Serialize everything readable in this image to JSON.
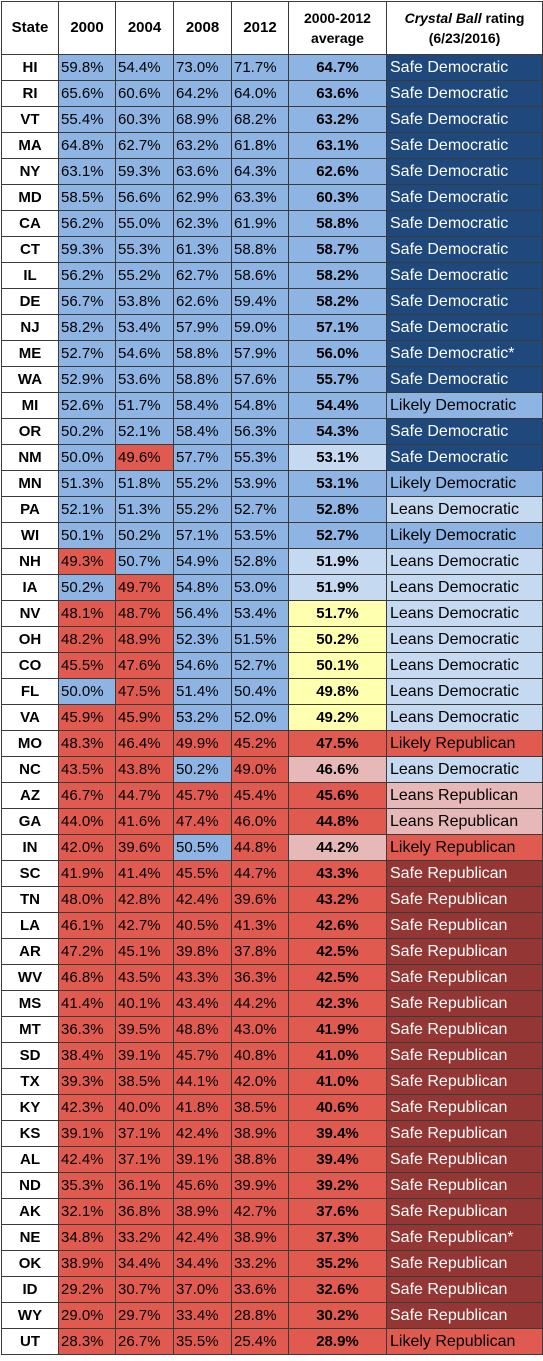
{
  "header": {
    "state": "State",
    "years": [
      "2000",
      "2004",
      "2008",
      "2012"
    ],
    "average_line1": "2000-2012",
    "average_line2": "average",
    "rating_italic": "Crystal Ball",
    "rating_rest": " rating",
    "rating_date": "(6/23/2016)"
  },
  "colors": {
    "blue": "#8eb4e3",
    "red": "#e05a50",
    "light_blue": "#c5d9f1",
    "yellow": "#ffffb0",
    "pink": "#e6b9b8",
    "safe_dem": "#1f497d",
    "likely_dem": "#8eb4e3",
    "leans_dem": "#c5d9f1",
    "leans_rep": "#e6b9b8",
    "likely_rep": "#e05a50",
    "safe_rep": "#943634"
  },
  "rows": [
    {
      "state": "HI",
      "pct": [
        "59.8%",
        "54.4%",
        "73.0%",
        "71.7%"
      ],
      "avg": "64.7%",
      "rating": "Safe Democratic",
      "cc": [
        "b",
        "b",
        "b",
        "b"
      ],
      "ac": "b",
      "rc": "sd"
    },
    {
      "state": "RI",
      "pct": [
        "65.6%",
        "60.6%",
        "64.2%",
        "64.0%"
      ],
      "avg": "63.6%",
      "rating": "Safe Democratic",
      "cc": [
        "b",
        "b",
        "b",
        "b"
      ],
      "ac": "b",
      "rc": "sd"
    },
    {
      "state": "VT",
      "pct": [
        "55.4%",
        "60.3%",
        "68.9%",
        "68.2%"
      ],
      "avg": "63.2%",
      "rating": "Safe Democratic",
      "cc": [
        "b",
        "b",
        "b",
        "b"
      ],
      "ac": "b",
      "rc": "sd"
    },
    {
      "state": "MA",
      "pct": [
        "64.8%",
        "62.7%",
        "63.2%",
        "61.8%"
      ],
      "avg": "63.1%",
      "rating": "Safe Democratic",
      "cc": [
        "b",
        "b",
        "b",
        "b"
      ],
      "ac": "b",
      "rc": "sd"
    },
    {
      "state": "NY",
      "pct": [
        "63.1%",
        "59.3%",
        "63.6%",
        "64.3%"
      ],
      "avg": "62.6%",
      "rating": "Safe Democratic",
      "cc": [
        "b",
        "b",
        "b",
        "b"
      ],
      "ac": "b",
      "rc": "sd"
    },
    {
      "state": "MD",
      "pct": [
        "58.5%",
        "56.6%",
        "62.9%",
        "63.3%"
      ],
      "avg": "60.3%",
      "rating": "Safe Democratic",
      "cc": [
        "b",
        "b",
        "b",
        "b"
      ],
      "ac": "b",
      "rc": "sd"
    },
    {
      "state": "CA",
      "pct": [
        "56.2%",
        "55.0%",
        "62.3%",
        "61.9%"
      ],
      "avg": "58.8%",
      "rating": "Safe Democratic",
      "cc": [
        "b",
        "b",
        "b",
        "b"
      ],
      "ac": "b",
      "rc": "sd"
    },
    {
      "state": "CT",
      "pct": [
        "59.3%",
        "55.3%",
        "61.3%",
        "58.8%"
      ],
      "avg": "58.7%",
      "rating": "Safe Democratic",
      "cc": [
        "b",
        "b",
        "b",
        "b"
      ],
      "ac": "b",
      "rc": "sd"
    },
    {
      "state": "IL",
      "pct": [
        "56.2%",
        "55.2%",
        "62.7%",
        "58.6%"
      ],
      "avg": "58.2%",
      "rating": "Safe Democratic",
      "cc": [
        "b",
        "b",
        "b",
        "b"
      ],
      "ac": "b",
      "rc": "sd"
    },
    {
      "state": "DE",
      "pct": [
        "56.7%",
        "53.8%",
        "62.6%",
        "59.4%"
      ],
      "avg": "58.2%",
      "rating": "Safe Democratic",
      "cc": [
        "b",
        "b",
        "b",
        "b"
      ],
      "ac": "b",
      "rc": "sd"
    },
    {
      "state": "NJ",
      "pct": [
        "58.2%",
        "53.4%",
        "57.9%",
        "59.0%"
      ],
      "avg": "57.1%",
      "rating": "Safe Democratic",
      "cc": [
        "b",
        "b",
        "b",
        "b"
      ],
      "ac": "b",
      "rc": "sd"
    },
    {
      "state": "ME",
      "pct": [
        "52.7%",
        "54.6%",
        "58.8%",
        "57.9%"
      ],
      "avg": "56.0%",
      "rating": "Safe Democratic*",
      "cc": [
        "b",
        "b",
        "b",
        "b"
      ],
      "ac": "b",
      "rc": "sd"
    },
    {
      "state": "WA",
      "pct": [
        "52.9%",
        "53.6%",
        "58.8%",
        "57.6%"
      ],
      "avg": "55.7%",
      "rating": "Safe Democratic",
      "cc": [
        "b",
        "b",
        "b",
        "b"
      ],
      "ac": "b",
      "rc": "sd"
    },
    {
      "state": "MI",
      "pct": [
        "52.6%",
        "51.7%",
        "58.4%",
        "54.8%"
      ],
      "avg": "54.4%",
      "rating": "Likely Democratic",
      "cc": [
        "b",
        "b",
        "b",
        "b"
      ],
      "ac": "b",
      "rc": "ld"
    },
    {
      "state": "OR",
      "pct": [
        "50.2%",
        "52.1%",
        "58.4%",
        "56.3%"
      ],
      "avg": "54.3%",
      "rating": "Safe Democratic",
      "cc": [
        "b",
        "b",
        "b",
        "b"
      ],
      "ac": "b",
      "rc": "sd"
    },
    {
      "state": "NM",
      "pct": [
        "50.0%",
        "49.6%",
        "57.7%",
        "55.3%"
      ],
      "avg": "53.1%",
      "rating": "Safe Democratic",
      "cc": [
        "b",
        "r",
        "b",
        "b"
      ],
      "ac": "lb",
      "rc": "sd"
    },
    {
      "state": "MN",
      "pct": [
        "51.3%",
        "51.8%",
        "55.2%",
        "53.9%"
      ],
      "avg": "53.1%",
      "rating": "Likely Democratic",
      "cc": [
        "b",
        "b",
        "b",
        "b"
      ],
      "ac": "b",
      "rc": "ld"
    },
    {
      "state": "PA",
      "pct": [
        "52.1%",
        "51.3%",
        "55.2%",
        "52.7%"
      ],
      "avg": "52.8%",
      "rating": "Leans Democratic",
      "cc": [
        "b",
        "b",
        "b",
        "b"
      ],
      "ac": "b",
      "rc": "lnd"
    },
    {
      "state": "WI",
      "pct": [
        "50.1%",
        "50.2%",
        "57.1%",
        "53.5%"
      ],
      "avg": "52.7%",
      "rating": "Likely Democratic",
      "cc": [
        "b",
        "b",
        "b",
        "b"
      ],
      "ac": "b",
      "rc": "ld"
    },
    {
      "state": "NH",
      "pct": [
        "49.3%",
        "50.7%",
        "54.9%",
        "52.8%"
      ],
      "avg": "51.9%",
      "rating": "Leans Democratic",
      "cc": [
        "r",
        "b",
        "b",
        "b"
      ],
      "ac": "lb",
      "rc": "lnd"
    },
    {
      "state": "IA",
      "pct": [
        "50.2%",
        "49.7%",
        "54.8%",
        "53.0%"
      ],
      "avg": "51.9%",
      "rating": "Leans Democratic",
      "cc": [
        "b",
        "r",
        "b",
        "b"
      ],
      "ac": "lb",
      "rc": "lnd"
    },
    {
      "state": "NV",
      "pct": [
        "48.1%",
        "48.7%",
        "56.4%",
        "53.4%"
      ],
      "avg": "51.7%",
      "rating": "Leans Democratic",
      "cc": [
        "r",
        "r",
        "b",
        "b"
      ],
      "ac": "y",
      "rc": "lnd"
    },
    {
      "state": "OH",
      "pct": [
        "48.2%",
        "48.9%",
        "52.3%",
        "51.5%"
      ],
      "avg": "50.2%",
      "rating": "Leans Democratic",
      "cc": [
        "r",
        "r",
        "b",
        "b"
      ],
      "ac": "y",
      "rc": "lnd"
    },
    {
      "state": "CO",
      "pct": [
        "45.5%",
        "47.6%",
        "54.6%",
        "52.7%"
      ],
      "avg": "50.1%",
      "rating": "Leans Democratic",
      "cc": [
        "r",
        "r",
        "b",
        "b"
      ],
      "ac": "y",
      "rc": "lnd"
    },
    {
      "state": "FL",
      "pct": [
        "50.0%",
        "47.5%",
        "51.4%",
        "50.4%"
      ],
      "avg": "49.8%",
      "rating": "Leans Democratic",
      "cc": [
        "b",
        "r",
        "b",
        "b"
      ],
      "ac": "y",
      "rc": "lnd"
    },
    {
      "state": "VA",
      "pct": [
        "45.9%",
        "45.9%",
        "53.2%",
        "52.0%"
      ],
      "avg": "49.2%",
      "rating": "Leans Democratic",
      "cc": [
        "r",
        "r",
        "b",
        "b"
      ],
      "ac": "y",
      "rc": "lnd"
    },
    {
      "state": "MO",
      "pct": [
        "48.3%",
        "46.4%",
        "49.9%",
        "45.2%"
      ],
      "avg": "47.5%",
      "rating": "Likely Republican",
      "cc": [
        "r",
        "r",
        "r",
        "r"
      ],
      "ac": "r",
      "rc": "lr"
    },
    {
      "state": "NC",
      "pct": [
        "43.5%",
        "43.8%",
        "50.2%",
        "49.0%"
      ],
      "avg": "46.6%",
      "rating": "Leans Democratic",
      "cc": [
        "r",
        "r",
        "b",
        "r"
      ],
      "ac": "p",
      "rc": "lnd"
    },
    {
      "state": "AZ",
      "pct": [
        "46.7%",
        "44.7%",
        "45.7%",
        "45.4%"
      ],
      "avg": "45.6%",
      "rating": "Leans Republican",
      "cc": [
        "r",
        "r",
        "r",
        "r"
      ],
      "ac": "r",
      "rc": "lnr"
    },
    {
      "state": "GA",
      "pct": [
        "44.0%",
        "41.6%",
        "47.4%",
        "46.0%"
      ],
      "avg": "44.8%",
      "rating": "Leans Republican",
      "cc": [
        "r",
        "r",
        "r",
        "r"
      ],
      "ac": "r",
      "rc": "lnr"
    },
    {
      "state": "IN",
      "pct": [
        "42.0%",
        "39.6%",
        "50.5%",
        "44.8%"
      ],
      "avg": "44.2%",
      "rating": "Likely Republican",
      "cc": [
        "r",
        "r",
        "b",
        "r"
      ],
      "ac": "p",
      "rc": "lr"
    },
    {
      "state": "SC",
      "pct": [
        "41.9%",
        "41.4%",
        "45.5%",
        "44.7%"
      ],
      "avg": "43.3%",
      "rating": "Safe Republican",
      "cc": [
        "r",
        "r",
        "r",
        "r"
      ],
      "ac": "r",
      "rc": "sr"
    },
    {
      "state": "TN",
      "pct": [
        "48.0%",
        "42.8%",
        "42.4%",
        "39.6%"
      ],
      "avg": "43.2%",
      "rating": "Safe Republican",
      "cc": [
        "r",
        "r",
        "r",
        "r"
      ],
      "ac": "r",
      "rc": "sr"
    },
    {
      "state": "LA",
      "pct": [
        "46.1%",
        "42.7%",
        "40.5%",
        "41.3%"
      ],
      "avg": "42.6%",
      "rating": "Safe Republican",
      "cc": [
        "r",
        "r",
        "r",
        "r"
      ],
      "ac": "r",
      "rc": "sr"
    },
    {
      "state": "AR",
      "pct": [
        "47.2%",
        "45.1%",
        "39.8%",
        "37.8%"
      ],
      "avg": "42.5%",
      "rating": "Safe Republican",
      "cc": [
        "r",
        "r",
        "r",
        "r"
      ],
      "ac": "r",
      "rc": "sr"
    },
    {
      "state": "WV",
      "pct": [
        "46.8%",
        "43.5%",
        "43.3%",
        "36.3%"
      ],
      "avg": "42.5%",
      "rating": "Safe Republican",
      "cc": [
        "r",
        "r",
        "r",
        "r"
      ],
      "ac": "r",
      "rc": "sr"
    },
    {
      "state": "MS",
      "pct": [
        "41.4%",
        "40.1%",
        "43.4%",
        "44.2%"
      ],
      "avg": "42.3%",
      "rating": "Safe Republican",
      "cc": [
        "r",
        "r",
        "r",
        "r"
      ],
      "ac": "r",
      "rc": "sr"
    },
    {
      "state": "MT",
      "pct": [
        "36.3%",
        "39.5%",
        "48.8%",
        "43.0%"
      ],
      "avg": "41.9%",
      "rating": "Safe Republican",
      "cc": [
        "r",
        "r",
        "r",
        "r"
      ],
      "ac": "r",
      "rc": "sr"
    },
    {
      "state": "SD",
      "pct": [
        "38.4%",
        "39.1%",
        "45.7%",
        "40.8%"
      ],
      "avg": "41.0%",
      "rating": "Safe Republican",
      "cc": [
        "r",
        "r",
        "r",
        "r"
      ],
      "ac": "r",
      "rc": "sr"
    },
    {
      "state": "TX",
      "pct": [
        "39.3%",
        "38.5%",
        "44.1%",
        "42.0%"
      ],
      "avg": "41.0%",
      "rating": "Safe Republican",
      "cc": [
        "r",
        "r",
        "r",
        "r"
      ],
      "ac": "r",
      "rc": "sr"
    },
    {
      "state": "KY",
      "pct": [
        "42.3%",
        "40.0%",
        "41.8%",
        "38.5%"
      ],
      "avg": "40.6%",
      "rating": "Safe Republican",
      "cc": [
        "r",
        "r",
        "r",
        "r"
      ],
      "ac": "r",
      "rc": "sr"
    },
    {
      "state": "KS",
      "pct": [
        "39.1%",
        "37.1%",
        "42.4%",
        "38.9%"
      ],
      "avg": "39.4%",
      "rating": "Safe Republican",
      "cc": [
        "r",
        "r",
        "r",
        "r"
      ],
      "ac": "r",
      "rc": "sr"
    },
    {
      "state": "AL",
      "pct": [
        "42.4%",
        "37.1%",
        "39.1%",
        "38.8%"
      ],
      "avg": "39.4%",
      "rating": "Safe Republican",
      "cc": [
        "r",
        "r",
        "r",
        "r"
      ],
      "ac": "r",
      "rc": "sr"
    },
    {
      "state": "ND",
      "pct": [
        "35.3%",
        "36.1%",
        "45.6%",
        "39.9%"
      ],
      "avg": "39.2%",
      "rating": "Safe Republican",
      "cc": [
        "r",
        "r",
        "r",
        "r"
      ],
      "ac": "r",
      "rc": "sr"
    },
    {
      "state": "AK",
      "pct": [
        "32.1%",
        "36.8%",
        "38.9%",
        "42.7%"
      ],
      "avg": "37.6%",
      "rating": "Safe Republican",
      "cc": [
        "r",
        "r",
        "r",
        "r"
      ],
      "ac": "r",
      "rc": "sr"
    },
    {
      "state": "NE",
      "pct": [
        "34.8%",
        "33.2%",
        "42.4%",
        "38.9%"
      ],
      "avg": "37.3%",
      "rating": "Safe Republican*",
      "cc": [
        "r",
        "r",
        "r",
        "r"
      ],
      "ac": "r",
      "rc": "sr"
    },
    {
      "state": "OK",
      "pct": [
        "38.9%",
        "34.4%",
        "34.4%",
        "33.2%"
      ],
      "avg": "35.2%",
      "rating": "Safe Republican",
      "cc": [
        "r",
        "r",
        "r",
        "r"
      ],
      "ac": "r",
      "rc": "sr"
    },
    {
      "state": "ID",
      "pct": [
        "29.2%",
        "30.7%",
        "37.0%",
        "33.6%"
      ],
      "avg": "32.6%",
      "rating": "Safe Republican",
      "cc": [
        "r",
        "r",
        "r",
        "r"
      ],
      "ac": "r",
      "rc": "sr"
    },
    {
      "state": "WY",
      "pct": [
        "29.0%",
        "29.7%",
        "33.4%",
        "28.8%"
      ],
      "avg": "30.2%",
      "rating": "Safe Republican",
      "cc": [
        "r",
        "r",
        "r",
        "r"
      ],
      "ac": "r",
      "rc": "sr"
    },
    {
      "state": "UT",
      "pct": [
        "28.3%",
        "26.7%",
        "35.5%",
        "25.4%"
      ],
      "avg": "28.9%",
      "rating": "Likely Republican",
      "cc": [
        "r",
        "r",
        "r",
        "r"
      ],
      "ac": "r",
      "rc": "lr"
    }
  ]
}
